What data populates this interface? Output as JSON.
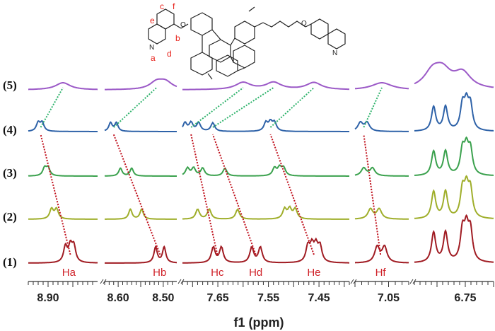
{
  "chart_data": {
    "type": "line",
    "xlabel": "f1 (ppm)",
    "x_reversed": true,
    "axis_breaks": true,
    "panels": [
      {
        "range": [
          8.94,
          8.8
        ],
        "ticks": [
          8.9
        ]
      },
      {
        "range": [
          8.63,
          8.47
        ],
        "ticks": [
          8.6,
          8.5
        ]
      },
      {
        "range": [
          7.72,
          7.39
        ],
        "ticks": [
          7.65,
          7.55,
          7.45
        ]
      },
      {
        "range": [
          7.1,
          7.02
        ],
        "ticks": [
          7.05
        ]
      },
      {
        "range": [
          6.84,
          6.7
        ],
        "ticks": [
          6.75
        ]
      }
    ],
    "tick_labels": [
      "8.90",
      "8.60",
      "8.50",
      "7.65",
      "7.55",
      "7.45",
      "7.05",
      "6.75"
    ],
    "series": [
      {
        "name": "(1)",
        "color": "#a01b22",
        "peaks_ppm": [
          8.865,
          8.855,
          8.848,
          8.517,
          8.498,
          7.659,
          7.643,
          7.583,
          7.566,
          7.472,
          7.464,
          7.456,
          7.448,
          7.067,
          7.056,
          6.806,
          6.785,
          6.755,
          6.748,
          6.741
        ]
      },
      {
        "name": "(2)",
        "color": "#9fae2a",
        "peaks_ppm": [
          8.893,
          8.883,
          8.573,
          8.548,
          7.69,
          7.667,
          7.611,
          7.518,
          7.508,
          7.497,
          7.077,
          7.064,
          6.806,
          6.785,
          6.755,
          6.748,
          6.741
        ]
      },
      {
        "name": "(3)",
        "color": "#3aa14d",
        "peaks_ppm": [
          8.907,
          8.9,
          8.595,
          8.57,
          7.71,
          7.698,
          7.68,
          7.636,
          7.538,
          7.528,
          7.52,
          7.087,
          7.074,
          6.806,
          6.785,
          6.755,
          6.748,
          6.741
        ]
      },
      {
        "name": "(4)",
        "color": "#2e62a8",
        "peaks_ppm": [
          8.92,
          8.912,
          8.617,
          8.604,
          7.715,
          7.703,
          7.688,
          7.66,
          7.555,
          7.546,
          7.538,
          7.092,
          7.082,
          6.806,
          6.785,
          6.755,
          6.748,
          6.741
        ]
      },
      {
        "name": "(5)",
        "color": "#9b59c7",
        "peaks_ppm": [
          8.87,
          8.515,
          8.495,
          7.6,
          7.54,
          7.46,
          7.06,
          6.808,
          6.79,
          6.755
        ]
      }
    ],
    "peak_labels": [
      {
        "text": "Ha",
        "ppm": 8.858
      },
      {
        "text": "Hb",
        "ppm": 8.508
      },
      {
        "text": "Hc",
        "ppm": 7.651
      },
      {
        "text": "Hd",
        "ppm": 7.575
      },
      {
        "text": "He",
        "ppm": 7.46
      },
      {
        "text": "Hf",
        "ppm": 7.062
      }
    ],
    "structure_labels": [
      "a",
      "b",
      "c",
      "d",
      "e",
      "f"
    ],
    "connector_colors": {
      "red": "#c0101c",
      "green": "#2fb36c"
    }
  }
}
